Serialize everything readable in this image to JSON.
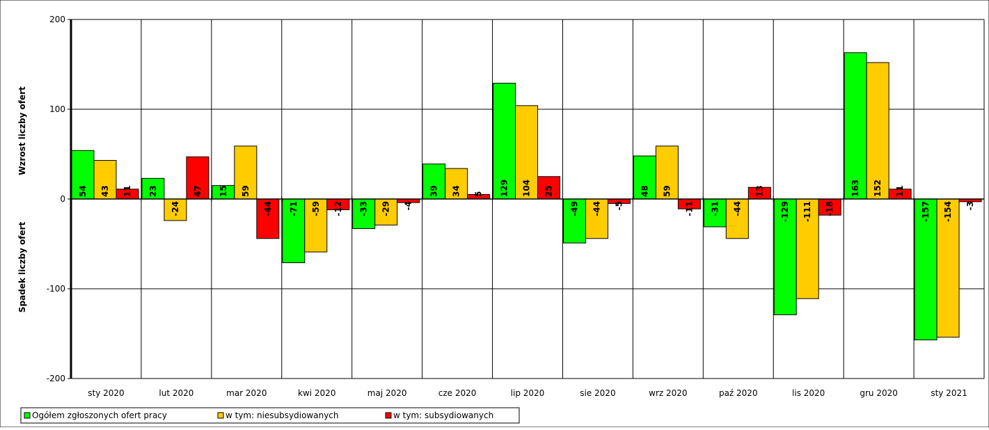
{
  "chart_data": {
    "type": "bar",
    "categories": [
      "sty 2020",
      "lut 2020",
      "mar 2020",
      "kwi 2020",
      "maj 2020",
      "cze 2020",
      "lip 2020",
      "sie 2020",
      "wrz 2020",
      "paź 2020",
      "lis 2020",
      "gru 2020",
      "sty 2021"
    ],
    "series": [
      {
        "name": "Ogółem zgłoszonych ofert pracy",
        "color": "#00ff00",
        "values": [
          54,
          23,
          15,
          -71,
          -33,
          39,
          129,
          -49,
          48,
          -31,
          -129,
          163,
          -157
        ],
        "labels": [
          "54",
          "23",
          "15",
          "-71",
          "-33",
          "39",
          "129",
          "-49",
          "48",
          "-31",
          "-129",
          "163",
          "-157"
        ]
      },
      {
        "name": "w tym: niesubsydiowanych",
        "color": "#ffcc00",
        "values": [
          43,
          -24,
          59,
          -59,
          -29,
          34,
          104,
          -44,
          59,
          -44,
          -111,
          152,
          -154
        ],
        "labels": [
          "43",
          "-24",
          "59",
          "-59",
          "-29",
          "34",
          "104",
          "-44",
          "59",
          "-44",
          "-111",
          "152",
          "-154"
        ]
      },
      {
        "name": "w tym: subsydiowanych",
        "color": "#ff0000",
        "values": [
          11,
          47,
          -44,
          -12,
          -4,
          5,
          25,
          -5,
          -11,
          13,
          -18,
          11,
          -3
        ],
        "labels": [
          "11",
          "47",
          "-44",
          "-12",
          "-4",
          "5",
          "25",
          "-5",
          "-11",
          "13",
          "-18",
          "11",
          "-3"
        ]
      }
    ],
    "yticks": [
      200,
      100,
      0,
      -100,
      -200
    ],
    "ytick_labels": [
      "200",
      "100",
      "0",
      "-100",
      "-200"
    ],
    "ylim": [
      -200,
      200
    ],
    "ylabel_top": "Wzrost liczby ofert",
    "ylabel_bottom": "Spadek liczby ofert",
    "grid": true,
    "legend_position": "bottom-left"
  }
}
